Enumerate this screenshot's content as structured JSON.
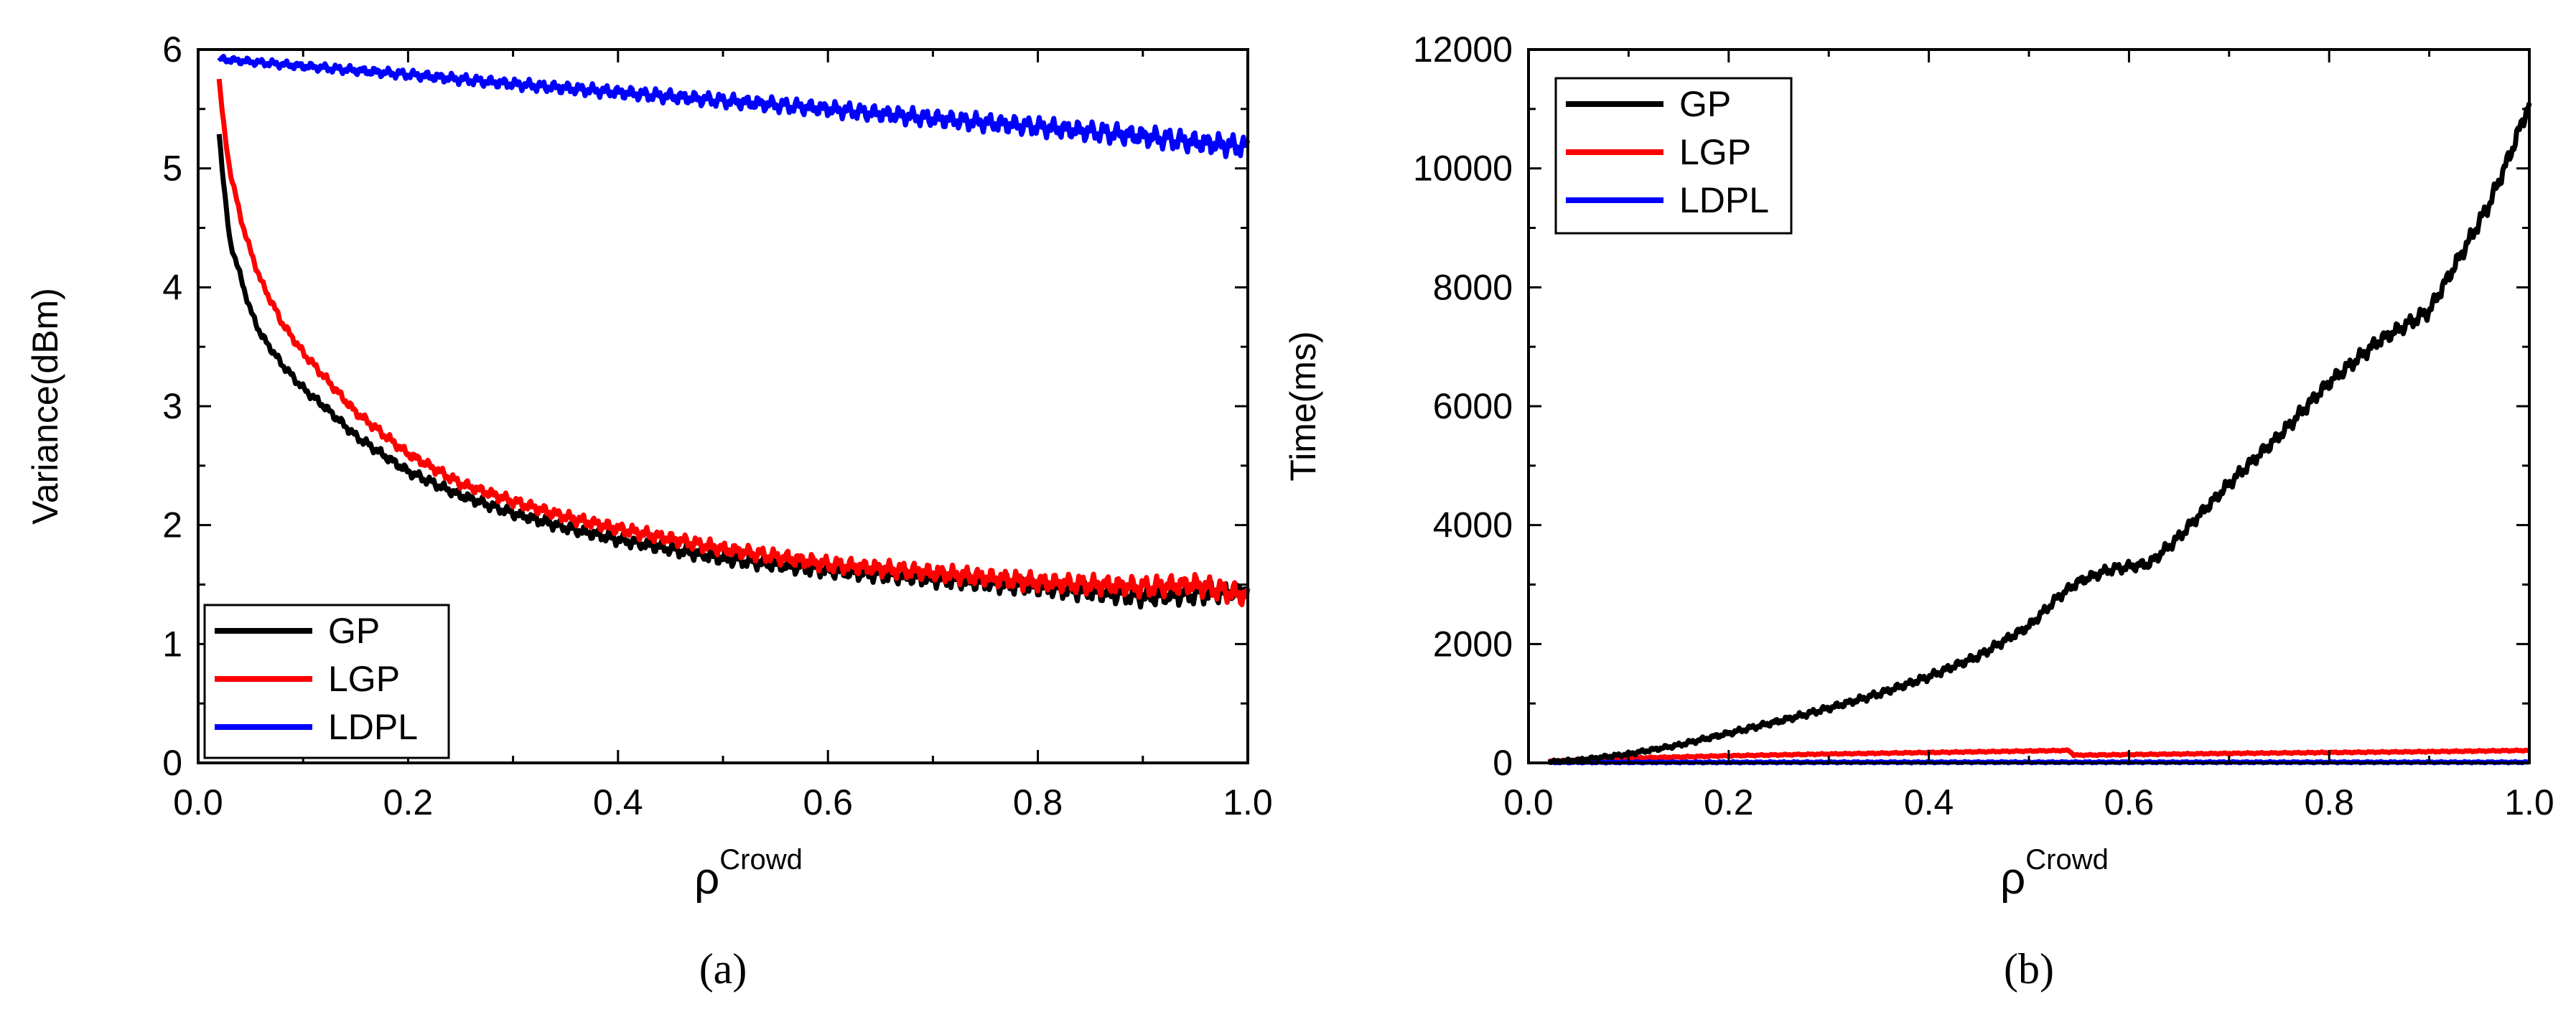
{
  "chart_data": [
    {
      "id": "a",
      "type": "line",
      "panel_label": "(a)",
      "xlabel": "ρ",
      "xlabel_superscript": "Crowd",
      "ylabel": "Variance(dBm)",
      "xlim": [
        0.0,
        1.0
      ],
      "ylim": [
        0,
        6
      ],
      "xticks": [
        0.0,
        0.2,
        0.4,
        0.6,
        0.8,
        1.0
      ],
      "yticks": [
        0,
        1,
        2,
        3,
        4,
        5,
        6
      ],
      "xtick_labels": [
        "0.0",
        "0.2",
        "0.4",
        "0.6",
        "0.8",
        "1.0"
      ],
      "ytick_labels": [
        "0",
        "1",
        "2",
        "3",
        "4",
        "5",
        "6"
      ],
      "legend_position": "bottom-left",
      "series": [
        {
          "name": "GP",
          "color": "#000000",
          "x": [
            0.02,
            0.025,
            0.03,
            0.04,
            0.05,
            0.06,
            0.08,
            0.1,
            0.12,
            0.15,
            0.2,
            0.25,
            0.3,
            0.35,
            0.4,
            0.5,
            0.6,
            0.7,
            0.8,
            0.9,
            0.95,
            1.0
          ],
          "y": [
            5.3,
            4.8,
            4.4,
            4.1,
            3.8,
            3.6,
            3.35,
            3.15,
            3.0,
            2.75,
            2.45,
            2.25,
            2.1,
            1.98,
            1.88,
            1.72,
            1.62,
            1.55,
            1.48,
            1.4,
            1.42,
            1.45
          ]
        },
        {
          "name": "LGP",
          "color": "#ff0000",
          "x": [
            0.02,
            0.025,
            0.03,
            0.04,
            0.05,
            0.06,
            0.08,
            0.1,
            0.12,
            0.15,
            0.2,
            0.25,
            0.3,
            0.35,
            0.4,
            0.5,
            0.6,
            0.7,
            0.8,
            0.9,
            0.95,
            1.0
          ],
          "y": [
            5.75,
            5.3,
            5.0,
            4.6,
            4.3,
            4.05,
            3.7,
            3.45,
            3.25,
            2.95,
            2.6,
            2.35,
            2.2,
            2.07,
            1.97,
            1.8,
            1.67,
            1.6,
            1.52,
            1.48,
            1.5,
            1.4
          ]
        },
        {
          "name": "LDPL",
          "color": "#0000ff",
          "x": [
            0.02,
            0.1,
            0.2,
            0.3,
            0.4,
            0.5,
            0.6,
            0.7,
            0.8,
            0.9,
            0.95,
            1.0
          ],
          "y": [
            5.92,
            5.86,
            5.79,
            5.71,
            5.64,
            5.57,
            5.5,
            5.42,
            5.35,
            5.27,
            5.22,
            5.18
          ]
        }
      ]
    },
    {
      "id": "b",
      "type": "line",
      "panel_label": "(b)",
      "xlabel": "ρ",
      "xlabel_superscript": "Crowd",
      "ylabel": "Time(ms)",
      "xlim": [
        0.0,
        1.0
      ],
      "ylim": [
        0,
        12000
      ],
      "xticks": [
        0.0,
        0.2,
        0.4,
        0.6,
        0.8,
        1.0
      ],
      "yticks": [
        0,
        2000,
        4000,
        6000,
        8000,
        10000,
        12000
      ],
      "xtick_labels": [
        "0.0",
        "0.2",
        "0.4",
        "0.6",
        "0.8",
        "1.0"
      ],
      "ytick_labels": [
        "0",
        "2000",
        "4000",
        "6000",
        "8000",
        "10000",
        "12000"
      ],
      "legend_position": "top-left",
      "series": [
        {
          "name": "GP",
          "color": "#000000",
          "x": [
            0.02,
            0.05,
            0.1,
            0.15,
            0.2,
            0.25,
            0.3,
            0.35,
            0.4,
            0.45,
            0.5,
            0.53,
            0.55,
            0.58,
            0.62,
            0.65,
            0.7,
            0.75,
            0.8,
            0.85,
            0.9,
            0.93,
            0.96,
            0.98,
            1.0
          ],
          "y": [
            20,
            50,
            150,
            300,
            500,
            700,
            920,
            1160,
            1450,
            1800,
            2300,
            2800,
            3050,
            3250,
            3350,
            3800,
            4700,
            5500,
            6400,
            7100,
            7600,
            8500,
            9400,
            10200,
            11100
          ]
        },
        {
          "name": "LGP",
          "color": "#ff0000",
          "x": [
            0.02,
            0.1,
            0.2,
            0.3,
            0.4,
            0.5,
            0.54,
            0.545,
            0.6,
            0.7,
            0.8,
            0.9,
            1.0
          ],
          "y": [
            30,
            80,
            120,
            150,
            175,
            200,
            210,
            130,
            140,
            160,
            175,
            190,
            210
          ]
        },
        {
          "name": "LDPL",
          "color": "#0000ff",
          "x": [
            0.02,
            0.2,
            0.4,
            0.6,
            0.8,
            1.0
          ],
          "y": [
            10,
            10,
            12,
            12,
            12,
            12
          ]
        }
      ]
    }
  ]
}
